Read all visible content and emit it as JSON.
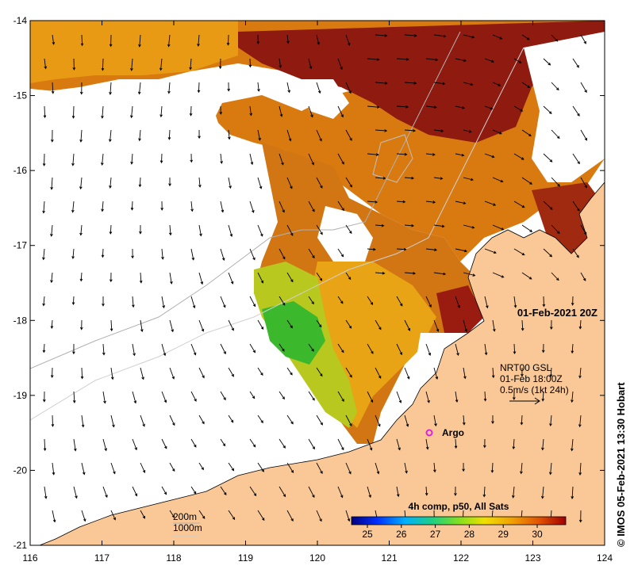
{
  "map": {
    "x_ticks": [
      "116",
      "117",
      "118",
      "119",
      "120",
      "121",
      "122",
      "123",
      "124"
    ],
    "y_ticks": [
      "-14",
      "-15",
      "-16",
      "-17",
      "-18",
      "-19",
      "-20",
      "-21"
    ],
    "timestamp": "01-Feb-2021 20Z",
    "currents": {
      "line1": "NRT00 GSL",
      "line2": "01-Feb 18:00Z",
      "line3": "0.5m/s (1kt 24h)"
    },
    "argo_label": "Argo",
    "depth_legend": {
      "line1": "200m",
      "line2": "1000m"
    },
    "colorbar": {
      "title": "4h comp, p50, All Sats",
      "tick_labels": [
        "25",
        "26",
        "27",
        "28",
        "29",
        "30"
      ]
    },
    "credit": "© IMOS 05-Feb-2021 13:30 Hobart",
    "colors": {
      "land": "#f9c896",
      "hot": "#8b1010",
      "warm": "#d2700a",
      "mid": "#e8a010",
      "cool": "#a8c81e",
      "cooler": "#3ab82a",
      "argo": "#e020e0"
    }
  }
}
